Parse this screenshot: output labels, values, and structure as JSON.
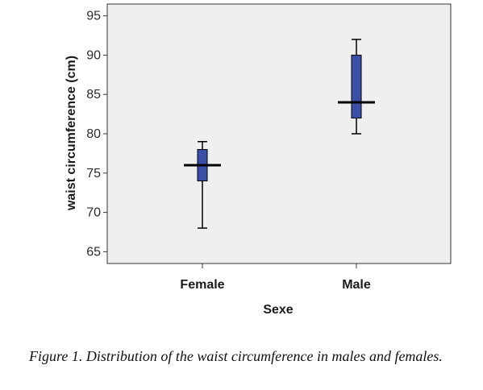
{
  "chart_data": {
    "type": "boxplot",
    "xlabel": "Sexe",
    "ylabel": "waist circumference (cm)",
    "ylim": [
      63.5,
      96.5
    ],
    "yticks": [
      65,
      70,
      75,
      80,
      85,
      90,
      95
    ],
    "categories": [
      "Female",
      "Male"
    ],
    "boxes": [
      {
        "category": "Female",
        "min": 68,
        "q1": 74,
        "median": 76,
        "q3": 78,
        "max": 79
      },
      {
        "category": "Male",
        "min": 80,
        "q1": 82,
        "median": 84,
        "q3": 90,
        "max": 92
      }
    ],
    "grid": false,
    "colors": {
      "box_fill": "#3b4fa8",
      "box_stroke": "#000000",
      "plot_bg": "#efefef"
    }
  },
  "caption": "Figure 1. Distribution of the waist circumference in males and females."
}
